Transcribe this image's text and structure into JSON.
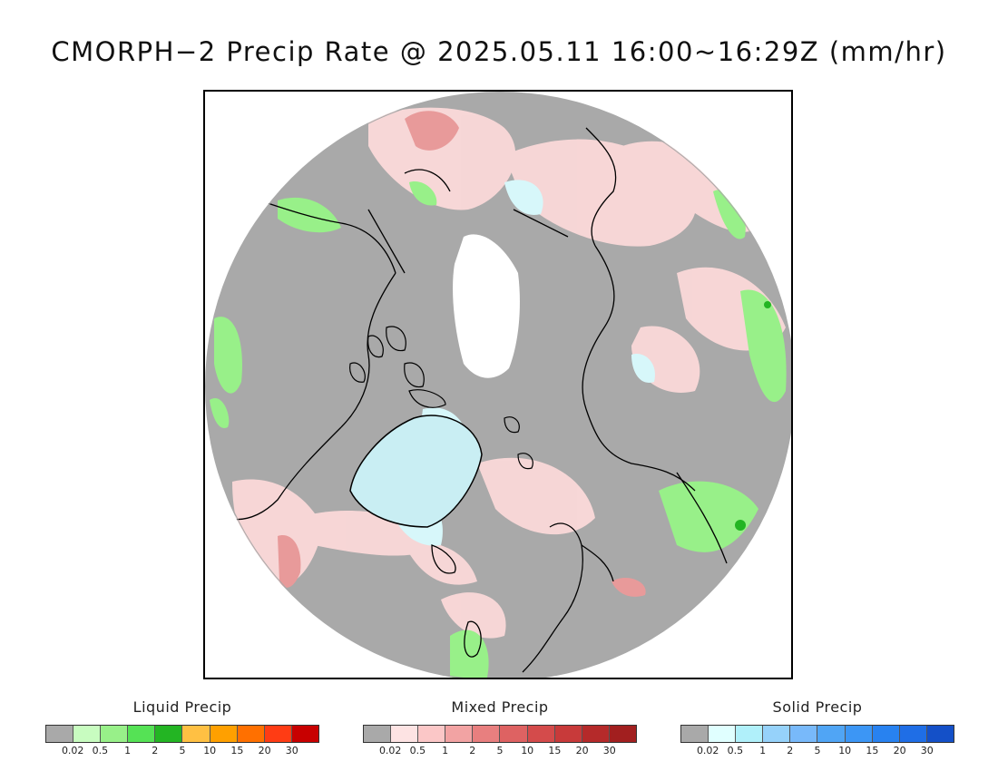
{
  "title": "CMORPH−2 Precip Rate @ 2025.05.11 16:00~16:29Z (mm/hr)",
  "map": {
    "projection": "north-polar-stereographic",
    "background_gray": "#a9a9a9",
    "coastline_color": "#000000"
  },
  "legends": [
    {
      "title": "Liquid Precip",
      "ticks": [
        "0.02",
        "0.5",
        "1",
        "2",
        "5",
        "10",
        "15",
        "20",
        "30"
      ],
      "colors": [
        "#a9a9a9",
        "#c8fcc0",
        "#98f089",
        "#55e255",
        "#23b523",
        "#ffc043",
        "#ffa000",
        "#ff7000",
        "#ff3c14",
        "#c80000"
      ]
    },
    {
      "title": "Mixed Precip",
      "ticks": [
        "0.02",
        "0.5",
        "1",
        "2",
        "5",
        "10",
        "15",
        "20",
        "30"
      ],
      "colors": [
        "#a9a9a9",
        "#fde3e3",
        "#fbc7c7",
        "#f2a3a3",
        "#e87f7f",
        "#de6262",
        "#d44b4b",
        "#c83a3a",
        "#b52a2a",
        "#a21f1f"
      ]
    },
    {
      "title": "Solid Precip",
      "ticks": [
        "0.02",
        "0.5",
        "1",
        "2",
        "5",
        "10",
        "15",
        "20",
        "30"
      ],
      "colors": [
        "#a9a9a9",
        "#e0ffff",
        "#b0f0fa",
        "#96d2fa",
        "#78b9fa",
        "#50a5f5",
        "#3c96f5",
        "#2882f0",
        "#1f6ee6",
        "#1450c8"
      ]
    }
  ]
}
